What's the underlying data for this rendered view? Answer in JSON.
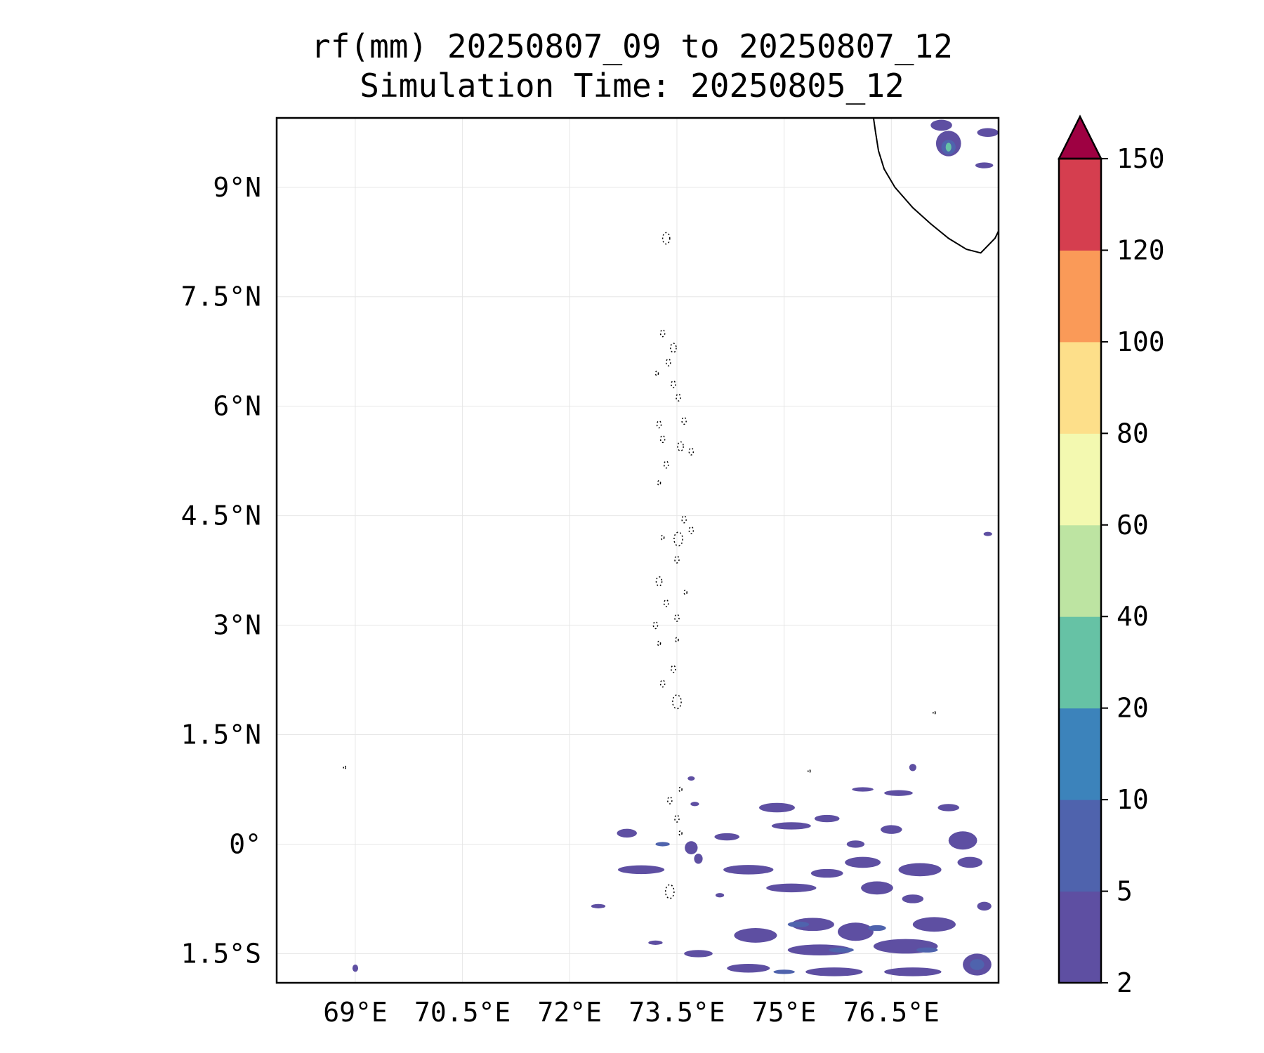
{
  "title": {
    "line1": "rf(mm) 20250807_09 to 20250807_12",
    "line2": "Simulation Time: 20250805_12"
  },
  "map": {
    "lon_range": [
      67.9,
      78.0
    ],
    "lat_range": [
      -1.9,
      9.95
    ],
    "lon_ticks": [
      {
        "value": 69.0,
        "label": "69°E"
      },
      {
        "value": 70.5,
        "label": "70.5°E"
      },
      {
        "value": 72.0,
        "label": "72°E"
      },
      {
        "value": 73.5,
        "label": "73.5°E"
      },
      {
        "value": 75.0,
        "label": "75°E"
      },
      {
        "value": 76.5,
        "label": "76.5°E"
      }
    ],
    "lat_ticks": [
      {
        "value": 9.0,
        "label": "9°N"
      },
      {
        "value": 7.5,
        "label": "7.5°N"
      },
      {
        "value": 6.0,
        "label": "6°N"
      },
      {
        "value": 4.5,
        "label": "4.5°N"
      },
      {
        "value": 3.0,
        "label": "3°N"
      },
      {
        "value": 1.5,
        "label": "1.5°N"
      },
      {
        "value": 0.0,
        "label": "0°"
      },
      {
        "value": -1.5,
        "label": "1.5°S"
      }
    ],
    "grid": true,
    "coastline_color": "#000000",
    "rain_cells": [
      {
        "lon": 73.7,
        "lat": 0.9,
        "w": 0.1,
        "h": 0.06,
        "c": 0
      },
      {
        "lon": 73.75,
        "lat": 0.55,
        "w": 0.12,
        "h": 0.06,
        "c": 0
      },
      {
        "lon": 72.8,
        "lat": 0.15,
        "w": 0.28,
        "h": 0.12,
        "c": 0
      },
      {
        "lon": 73.0,
        "lat": -0.35,
        "w": 0.65,
        "h": 0.12,
        "c": 0
      },
      {
        "lon": 73.7,
        "lat": -0.05,
        "w": 0.18,
        "h": 0.18,
        "c": 0
      },
      {
        "lon": 73.8,
        "lat": -0.2,
        "w": 0.12,
        "h": 0.14,
        "c": 0
      },
      {
        "lon": 74.2,
        "lat": 0.1,
        "w": 0.35,
        "h": 0.1,
        "c": 0
      },
      {
        "lon": 74.5,
        "lat": -0.35,
        "w": 0.7,
        "h": 0.13,
        "c": 0
      },
      {
        "lon": 74.9,
        "lat": 0.5,
        "w": 0.5,
        "h": 0.13,
        "c": 0
      },
      {
        "lon": 75.1,
        "lat": 0.25,
        "w": 0.55,
        "h": 0.1,
        "c": 0
      },
      {
        "lon": 75.6,
        "lat": 0.35,
        "w": 0.35,
        "h": 0.1,
        "c": 0
      },
      {
        "lon": 75.1,
        "lat": -0.6,
        "w": 0.7,
        "h": 0.12,
        "c": 0
      },
      {
        "lon": 75.6,
        "lat": -0.4,
        "w": 0.45,
        "h": 0.12,
        "c": 0
      },
      {
        "lon": 76.1,
        "lat": -0.25,
        "w": 0.5,
        "h": 0.15,
        "c": 0
      },
      {
        "lon": 76.3,
        "lat": -0.6,
        "w": 0.45,
        "h": 0.18,
        "c": 0
      },
      {
        "lon": 76.6,
        "lat": 0.7,
        "w": 0.4,
        "h": 0.08,
        "c": 0
      },
      {
        "lon": 76.1,
        "lat": 0.75,
        "w": 0.3,
        "h": 0.06,
        "c": 0
      },
      {
        "lon": 77.3,
        "lat": 0.5,
        "w": 0.3,
        "h": 0.1,
        "c": 0
      },
      {
        "lon": 77.5,
        "lat": 0.05,
        "w": 0.4,
        "h": 0.25,
        "c": 0
      },
      {
        "lon": 77.6,
        "lat": -0.25,
        "w": 0.35,
        "h": 0.15,
        "c": 0
      },
      {
        "lon": 76.9,
        "lat": -0.35,
        "w": 0.6,
        "h": 0.18,
        "c": 0
      },
      {
        "lon": 76.5,
        "lat": 0.2,
        "w": 0.3,
        "h": 0.12,
        "c": 0
      },
      {
        "lon": 76.0,
        "lat": 0.0,
        "w": 0.25,
        "h": 0.1,
        "c": 0
      },
      {
        "lon": 76.8,
        "lat": -0.75,
        "w": 0.3,
        "h": 0.12,
        "c": 0
      },
      {
        "lon": 74.1,
        "lat": -0.7,
        "w": 0.12,
        "h": 0.06,
        "c": 0
      },
      {
        "lon": 72.4,
        "lat": -0.85,
        "w": 0.2,
        "h": 0.06,
        "c": 0
      },
      {
        "lon": 74.6,
        "lat": -1.25,
        "w": 0.6,
        "h": 0.2,
        "c": 0
      },
      {
        "lon": 75.4,
        "lat": -1.1,
        "w": 0.6,
        "h": 0.18,
        "c": 0
      },
      {
        "lon": 76.0,
        "lat": -1.2,
        "w": 0.5,
        "h": 0.25,
        "c": 0
      },
      {
        "lon": 75.5,
        "lat": -1.45,
        "w": 0.9,
        "h": 0.15,
        "c": 0
      },
      {
        "lon": 76.7,
        "lat": -1.4,
        "w": 0.9,
        "h": 0.2,
        "c": 0
      },
      {
        "lon": 77.1,
        "lat": -1.1,
        "w": 0.6,
        "h": 0.2,
        "c": 0
      },
      {
        "lon": 77.7,
        "lat": -1.65,
        "w": 0.4,
        "h": 0.3,
        "c": 0
      },
      {
        "lon": 74.5,
        "lat": -1.7,
        "w": 0.6,
        "h": 0.12,
        "c": 0
      },
      {
        "lon": 73.8,
        "lat": -1.5,
        "w": 0.4,
        "h": 0.1,
        "c": 0
      },
      {
        "lon": 75.7,
        "lat": -1.75,
        "w": 0.8,
        "h": 0.12,
        "c": 0
      },
      {
        "lon": 76.8,
        "lat": -1.75,
        "w": 0.8,
        "h": 0.12,
        "c": 0
      },
      {
        "lon": 77.8,
        "lat": -0.85,
        "w": 0.2,
        "h": 0.12,
        "c": 0
      },
      {
        "lon": 73.2,
        "lat": -1.35,
        "w": 0.2,
        "h": 0.06,
        "c": 0
      },
      {
        "lon": 77.3,
        "lat": 9.6,
        "w": 0.35,
        "h": 0.35,
        "c": 0
      },
      {
        "lon": 77.2,
        "lat": 9.85,
        "w": 0.3,
        "h": 0.15,
        "c": 0
      },
      {
        "lon": 77.85,
        "lat": 9.75,
        "w": 0.3,
        "h": 0.12,
        "c": 0
      },
      {
        "lon": 77.8,
        "lat": 9.3,
        "w": 0.25,
        "h": 0.08,
        "c": 0
      },
      {
        "lon": 77.85,
        "lat": 4.25,
        "w": 0.12,
        "h": 0.05,
        "c": 0
      },
      {
        "lon": 69.0,
        "lat": -1.7,
        "w": 0.08,
        "h": 0.1,
        "c": 0
      },
      {
        "lon": 76.8,
        "lat": 1.05,
        "w": 0.1,
        "h": 0.1,
        "c": 0
      },
      {
        "lon": 73.3,
        "lat": 0.0,
        "w": 0.2,
        "h": 0.06,
        "c": 1
      },
      {
        "lon": 75.2,
        "lat": -1.1,
        "w": 0.3,
        "h": 0.08,
        "c": 1
      },
      {
        "lon": 75.8,
        "lat": -1.45,
        "w": 0.35,
        "h": 0.07,
        "c": 1
      },
      {
        "lon": 76.3,
        "lat": -1.15,
        "w": 0.25,
        "h": 0.08,
        "c": 1
      },
      {
        "lon": 77.0,
        "lat": -1.45,
        "w": 0.3,
        "h": 0.07,
        "c": 1
      },
      {
        "lon": 77.7,
        "lat": -1.65,
        "w": 0.2,
        "h": 0.15,
        "c": 1
      },
      {
        "lon": 75.0,
        "lat": -1.75,
        "w": 0.3,
        "h": 0.06,
        "c": 1
      },
      {
        "lon": 77.3,
        "lat": 9.55,
        "w": 0.2,
        "h": 0.2,
        "c": 1
      },
      {
        "lon": 77.3,
        "lat": 9.55,
        "w": 0.08,
        "h": 0.12,
        "c": 3
      }
    ],
    "atolls": [
      {
        "lon": 73.35,
        "lat": 8.3,
        "r": 0.05
      },
      {
        "lon": 73.3,
        "lat": 7.0,
        "r": 0.03
      },
      {
        "lon": 73.45,
        "lat": 6.8,
        "r": 0.04
      },
      {
        "lon": 73.38,
        "lat": 6.6,
        "r": 0.03
      },
      {
        "lon": 73.22,
        "lat": 6.45,
        "r": 0.02
      },
      {
        "lon": 73.45,
        "lat": 6.3,
        "r": 0.03
      },
      {
        "lon": 73.52,
        "lat": 6.12,
        "r": 0.03
      },
      {
        "lon": 73.25,
        "lat": 5.75,
        "r": 0.03
      },
      {
        "lon": 73.3,
        "lat": 5.55,
        "r": 0.03
      },
      {
        "lon": 73.6,
        "lat": 5.8,
        "r": 0.03
      },
      {
        "lon": 73.55,
        "lat": 5.45,
        "r": 0.04
      },
      {
        "lon": 73.7,
        "lat": 5.38,
        "r": 0.03
      },
      {
        "lon": 73.35,
        "lat": 5.2,
        "r": 0.03
      },
      {
        "lon": 73.25,
        "lat": 4.95,
        "r": 0.02
      },
      {
        "lon": 73.6,
        "lat": 4.45,
        "r": 0.03
      },
      {
        "lon": 73.7,
        "lat": 4.3,
        "r": 0.03
      },
      {
        "lon": 73.52,
        "lat": 4.18,
        "r": 0.06
      },
      {
        "lon": 73.3,
        "lat": 4.2,
        "r": 0.02
      },
      {
        "lon": 73.5,
        "lat": 3.9,
        "r": 0.03
      },
      {
        "lon": 73.25,
        "lat": 3.6,
        "r": 0.04
      },
      {
        "lon": 73.35,
        "lat": 3.3,
        "r": 0.03
      },
      {
        "lon": 73.2,
        "lat": 3.0,
        "r": 0.03
      },
      {
        "lon": 73.5,
        "lat": 3.1,
        "r": 0.03
      },
      {
        "lon": 73.5,
        "lat": 2.8,
        "r": 0.02
      },
      {
        "lon": 73.25,
        "lat": 2.75,
        "r": 0.02
      },
      {
        "lon": 73.45,
        "lat": 2.4,
        "r": 0.03
      },
      {
        "lon": 73.3,
        "lat": 2.2,
        "r": 0.03
      },
      {
        "lon": 73.5,
        "lat": 1.95,
        "r": 0.06
      },
      {
        "lon": 73.62,
        "lat": 3.45,
        "r": 0.02
      },
      {
        "lon": 73.4,
        "lat": 0.6,
        "r": 0.03
      },
      {
        "lon": 73.5,
        "lat": 0.35,
        "r": 0.03
      },
      {
        "lon": 73.55,
        "lat": 0.75,
        "r": 0.02
      },
      {
        "lon": 73.55,
        "lat": 0.15,
        "r": 0.02
      },
      {
        "lon": 73.4,
        "lat": -0.65,
        "r": 0.06
      },
      {
        "lon": 68.85,
        "lat": 1.05,
        "r": 0.015
      },
      {
        "lon": 77.1,
        "lat": 1.8,
        "r": 0.01
      },
      {
        "lon": 75.35,
        "lat": 1.0,
        "r": 0.01
      }
    ],
    "india_coast": [
      [
        76.25,
        9.95
      ],
      [
        76.28,
        9.75
      ],
      [
        76.32,
        9.5
      ],
      [
        76.4,
        9.25
      ],
      [
        76.55,
        9.0
      ],
      [
        76.8,
        8.72
      ],
      [
        77.05,
        8.5
      ],
      [
        77.3,
        8.3
      ],
      [
        77.55,
        8.15
      ],
      [
        77.75,
        8.1
      ],
      [
        77.95,
        8.3
      ],
      [
        78.0,
        8.4
      ]
    ]
  },
  "colorbar": {
    "levels": [
      2,
      5,
      10,
      20,
      40,
      60,
      80,
      100,
      120,
      150
    ],
    "tick_labels": [
      "2",
      "5",
      "10",
      "20",
      "40",
      "60",
      "80",
      "100",
      "120",
      "150"
    ],
    "colors": [
      "#5e4fa2",
      "#4f63ad",
      "#3c83bb",
      "#66c2a5",
      "#bde4a2",
      "#f3f9b0",
      "#fddf8a",
      "#fa9a58",
      "#d53e4f"
    ],
    "extend_color": "#9e0142",
    "extend": "max"
  }
}
